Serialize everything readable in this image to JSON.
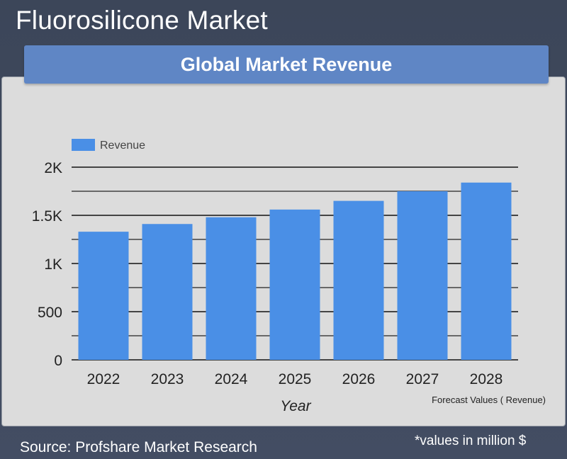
{
  "page": {
    "title": "Fluorosilicone Market",
    "banner_title": "Global Market Revenue",
    "source": "Source: Profshare Market Research",
    "note": "*values in million $"
  },
  "chart_data": {
    "type": "bar",
    "categories": [
      "2022",
      "2023",
      "2024",
      "2025",
      "2026",
      "2027",
      "2028"
    ],
    "series": [
      {
        "name": "Revenue",
        "values": [
          1330,
          1410,
          1480,
          1560,
          1650,
          1750,
          1840
        ]
      }
    ],
    "xlabel": "Year",
    "ylabel": "",
    "ylim": [
      0,
      2000
    ],
    "yticks": [
      0,
      500,
      1000,
      1500,
      2000
    ],
    "ytick_labels": [
      "0",
      "500",
      "1K",
      "1.5K",
      "2K"
    ],
    "minor_gridlines": [
      250,
      750,
      1250,
      1750
    ],
    "annotation": "Forecast Values ( Revenue)",
    "legend_position": "top-left",
    "grid": true,
    "bar_color": "#4a8fe6"
  }
}
